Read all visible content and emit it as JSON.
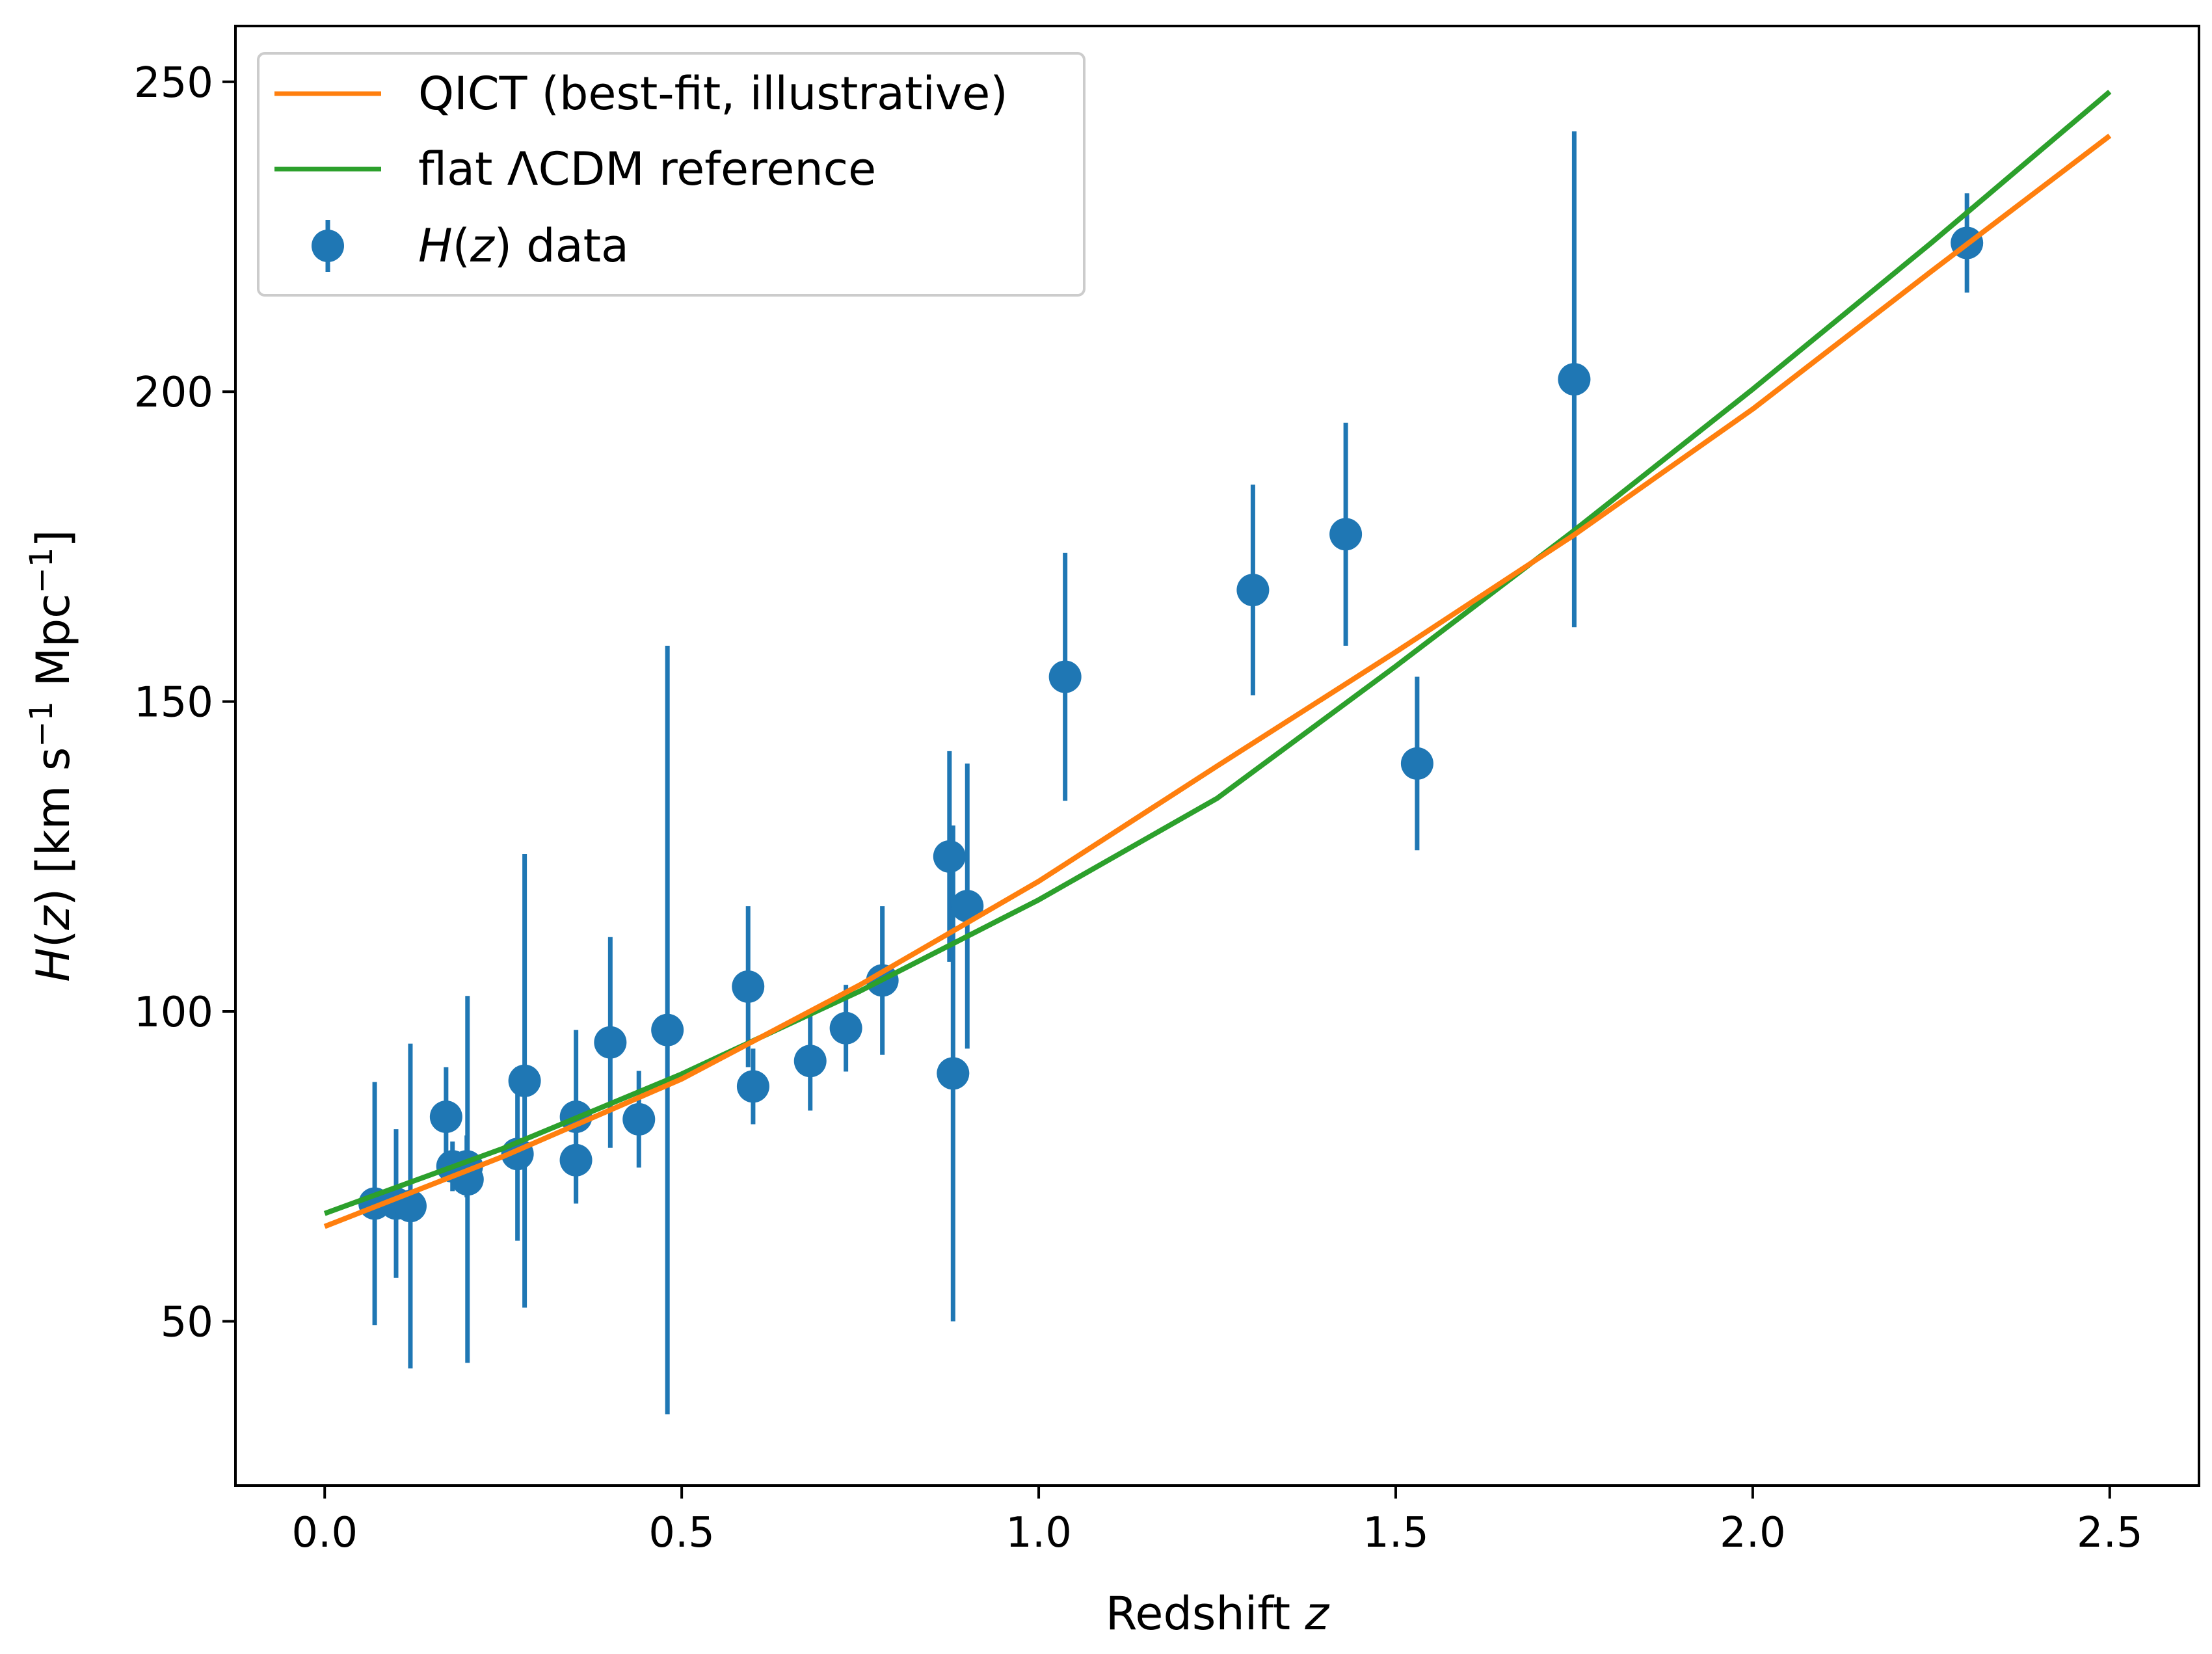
{
  "chart_data": {
    "type": "scatter",
    "xlabel": "Redshift",
    "xlabel_var": "z",
    "ylabel": "H(z) [km s⁻¹ Mpc⁻¹]",
    "ylabel_var_H": "H",
    "ylabel_open": "(",
    "ylabel_var_z": "z",
    "ylabel_close_unit": ") [km s",
    "ylabel_exp1": "−1",
    "ylabel_mid": " Mpc",
    "ylabel_exp2": "−1",
    "ylabel_end": "]",
    "xlim": [
      -0.125,
      2.625
    ],
    "ylim": [
      23.5,
      259
    ],
    "xticks": [
      0.0,
      0.5,
      1.0,
      1.5,
      2.0,
      2.5
    ],
    "xtick_labels": [
      "0.0",
      "0.5",
      "1.0",
      "1.5",
      "2.0",
      "2.5"
    ],
    "yticks": [
      50,
      100,
      150,
      200,
      250
    ],
    "ytick_labels": [
      "50",
      "100",
      "150",
      "200",
      "250"
    ],
    "grid": false,
    "legend_position": "upper-left",
    "series": [
      {
        "name": "QICT (best-fit, illustrative)",
        "kind": "line",
        "color": "#ff7f0e",
        "x": [
          0.0,
          0.25,
          0.5,
          0.75,
          1.0,
          1.25,
          1.5,
          1.75,
          2.0,
          2.25,
          2.5
        ],
        "y": [
          65.3,
          76.6,
          89.1,
          104.3,
          121.0,
          139.6,
          158.0,
          176.9,
          197.2,
          219.4,
          241.3
        ]
      },
      {
        "name": "flat ΛCDM reference",
        "kind": "line",
        "color": "#2ca02c",
        "x": [
          0.0,
          0.25,
          0.5,
          0.75,
          1.0,
          1.25,
          1.5,
          1.75,
          2.0,
          2.25,
          2.5
        ],
        "y": [
          67.4,
          77.9,
          89.9,
          103.3,
          118.0,
          134.4,
          155.7,
          177.6,
          200.4,
          224.0,
          248.4
        ]
      },
      {
        "name_var": "H",
        "name_open": "(",
        "name_var_z": "z",
        "name_rest": ") data",
        "kind": "errorbar",
        "color": "#1f77b4",
        "points": [
          {
            "x": 0.07,
            "y": 69.0,
            "err": 19.6
          },
          {
            "x": 0.1,
            "y": 69.0,
            "err": 12.0
          },
          {
            "x": 0.12,
            "y": 68.6,
            "err": 26.2
          },
          {
            "x": 0.17,
            "y": 83.0,
            "err": 8.0
          },
          {
            "x": 0.179,
            "y": 75.0,
            "err": 4.0
          },
          {
            "x": 0.199,
            "y": 75.0,
            "err": 5.0
          },
          {
            "x": 0.2,
            "y": 72.9,
            "err": 29.6
          },
          {
            "x": 0.27,
            "y": 77.0,
            "err": 14.0
          },
          {
            "x": 0.28,
            "y": 88.8,
            "err": 36.6
          },
          {
            "x": 0.352,
            "y": 83.0,
            "err": 14.0
          },
          {
            "x": 0.3519,
            "y": 76.0,
            "err": 6.7
          },
          {
            "x": 0.4,
            "y": 95.0,
            "err": 17.0
          },
          {
            "x": 0.44,
            "y": 82.6,
            "err": 7.8
          },
          {
            "x": 0.48,
            "y": 97.0,
            "err": 62.0
          },
          {
            "x": 0.593,
            "y": 104.0,
            "err": 13.0
          },
          {
            "x": 0.6,
            "y": 87.9,
            "err": 6.1
          },
          {
            "x": 0.68,
            "y": 92.0,
            "err": 8.0
          },
          {
            "x": 0.73,
            "y": 97.3,
            "err": 7.0
          },
          {
            "x": 0.781,
            "y": 105.0,
            "err": 12.0
          },
          {
            "x": 0.875,
            "y": 125.0,
            "err": 17.0
          },
          {
            "x": 0.88,
            "y": 90.0,
            "err": 40.0
          },
          {
            "x": 0.9,
            "y": 117.0,
            "err": 23.0
          },
          {
            "x": 1.037,
            "y": 154.0,
            "err": 20.0
          },
          {
            "x": 1.3,
            "y": 168.0,
            "err": 17.0
          },
          {
            "x": 1.43,
            "y": 177.0,
            "err": 18.0
          },
          {
            "x": 1.53,
            "y": 140.0,
            "err": 14.0
          },
          {
            "x": 1.75,
            "y": 202.0,
            "err": 40.0
          },
          {
            "x": 2.3,
            "y": 224.0,
            "err": 8.0
          }
        ]
      }
    ]
  }
}
